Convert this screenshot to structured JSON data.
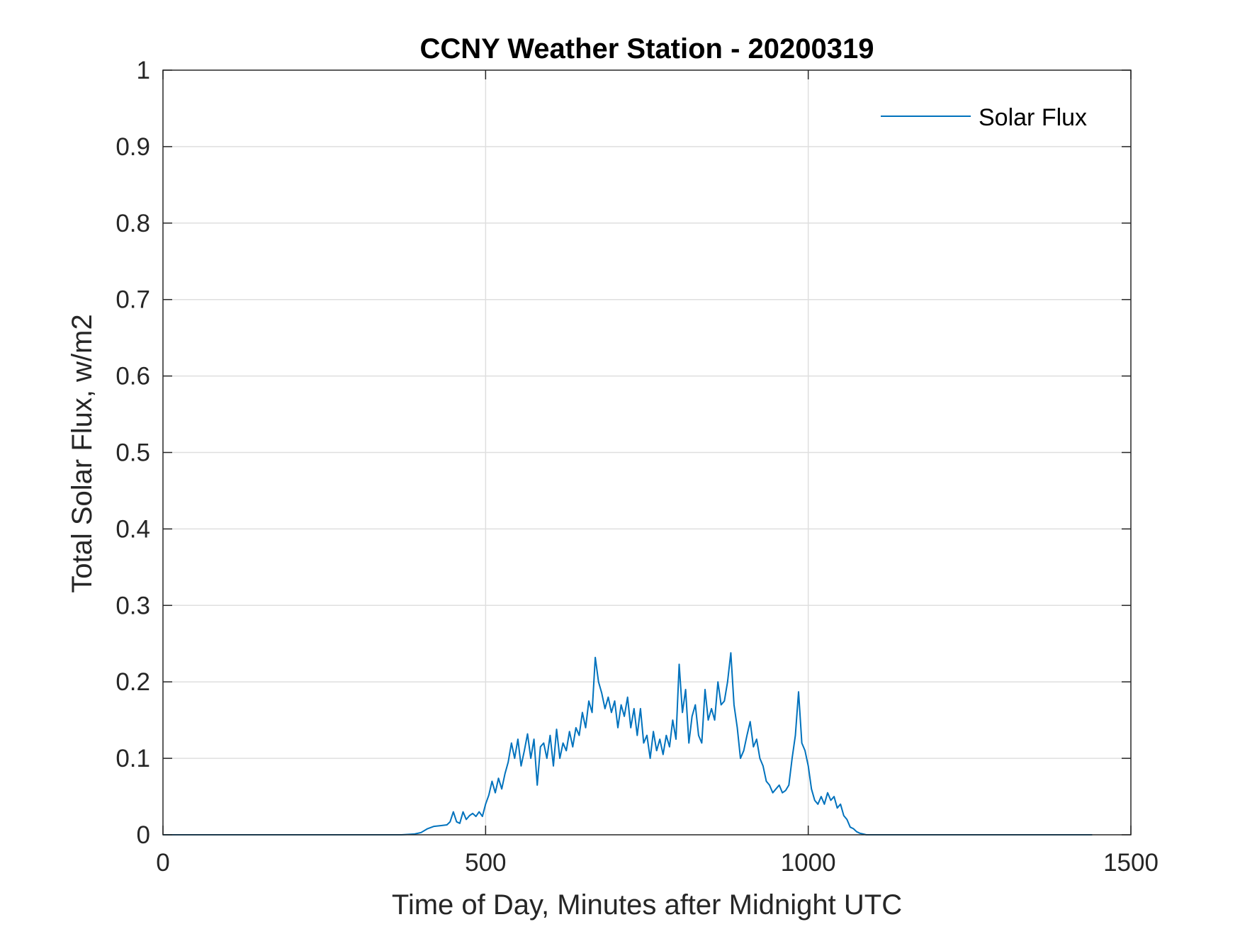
{
  "chart_data": {
    "type": "line",
    "title": "CCNY Weather Station - 20200319",
    "xlabel": "Time of Day, Minutes after Midnight UTC",
    "ylabel": "Total Solar Flux, w/m2",
    "xlim": [
      0,
      1500
    ],
    "ylim": [
      0,
      1
    ],
    "xticks": [
      0,
      500,
      1000,
      1500
    ],
    "xtick_labels": [
      "0",
      "500",
      "1000",
      "1500"
    ],
    "yticks": [
      0,
      0.1,
      0.2,
      0.3,
      0.4,
      0.5,
      0.6,
      0.7,
      0.8,
      0.9,
      1
    ],
    "ytick_labels": [
      "0",
      "0.1",
      "0.2",
      "0.3",
      "0.4",
      "0.5",
      "0.6",
      "0.7",
      "0.8",
      "0.9",
      "1"
    ],
    "grid": true,
    "legend_position": "top-right",
    "series": [
      {
        "name": "Solar Flux",
        "color": "#0072BD",
        "x": [
          0,
          370,
          390,
          400,
          410,
          420,
          430,
          440,
          445,
          450,
          455,
          460,
          465,
          470,
          475,
          480,
          485,
          490,
          495,
          500,
          505,
          510,
          515,
          520,
          525,
          530,
          535,
          540,
          545,
          550,
          555,
          560,
          565,
          570,
          575,
          580,
          585,
          590,
          595,
          600,
          605,
          610,
          615,
          620,
          625,
          630,
          635,
          640,
          645,
          650,
          655,
          660,
          665,
          670,
          675,
          680,
          685,
          690,
          695,
          700,
          705,
          710,
          715,
          720,
          725,
          730,
          735,
          740,
          745,
          750,
          755,
          760,
          765,
          770,
          775,
          780,
          785,
          790,
          795,
          800,
          805,
          810,
          815,
          820,
          825,
          830,
          835,
          840,
          845,
          850,
          855,
          860,
          865,
          870,
          875,
          880,
          885,
          890,
          895,
          900,
          905,
          910,
          915,
          920,
          925,
          930,
          935,
          940,
          945,
          950,
          955,
          960,
          965,
          970,
          975,
          980,
          985,
          990,
          995,
          1000,
          1005,
          1010,
          1015,
          1020,
          1025,
          1030,
          1035,
          1040,
          1045,
          1050,
          1055,
          1060,
          1065,
          1070,
          1075,
          1080,
          1085,
          1090,
          1100,
          1200,
          1300,
          1440
        ],
        "y": [
          0,
          0,
          0.001,
          0.003,
          0.008,
          0.011,
          0.012,
          0.013,
          0.017,
          0.03,
          0.017,
          0.015,
          0.03,
          0.02,
          0.025,
          0.028,
          0.024,
          0.03,
          0.024,
          0.04,
          0.052,
          0.07,
          0.055,
          0.074,
          0.06,
          0.08,
          0.095,
          0.12,
          0.1,
          0.125,
          0.09,
          0.11,
          0.132,
          0.1,
          0.125,
          0.065,
          0.115,
          0.12,
          0.1,
          0.13,
          0.09,
          0.138,
          0.1,
          0.12,
          0.11,
          0.135,
          0.115,
          0.14,
          0.13,
          0.16,
          0.14,
          0.175,
          0.16,
          0.232,
          0.2,
          0.185,
          0.165,
          0.18,
          0.16,
          0.175,
          0.14,
          0.17,
          0.155,
          0.18,
          0.14,
          0.165,
          0.13,
          0.165,
          0.12,
          0.13,
          0.1,
          0.135,
          0.11,
          0.125,
          0.105,
          0.13,
          0.115,
          0.15,
          0.125,
          0.223,
          0.16,
          0.19,
          0.12,
          0.155,
          0.17,
          0.13,
          0.12,
          0.19,
          0.15,
          0.165,
          0.15,
          0.2,
          0.17,
          0.175,
          0.2,
          0.238,
          0.17,
          0.14,
          0.1,
          0.11,
          0.13,
          0.148,
          0.115,
          0.125,
          0.1,
          0.09,
          0.07,
          0.065,
          0.055,
          0.06,
          0.065,
          0.055,
          0.058,
          0.065,
          0.1,
          0.13,
          0.187,
          0.12,
          0.11,
          0.09,
          0.06,
          0.045,
          0.04,
          0.05,
          0.04,
          0.055,
          0.045,
          0.05,
          0.035,
          0.04,
          0.025,
          0.02,
          0.01,
          0.008,
          0.004,
          0.002,
          0.001,
          0,
          0,
          0,
          0,
          0
        ]
      }
    ]
  }
}
